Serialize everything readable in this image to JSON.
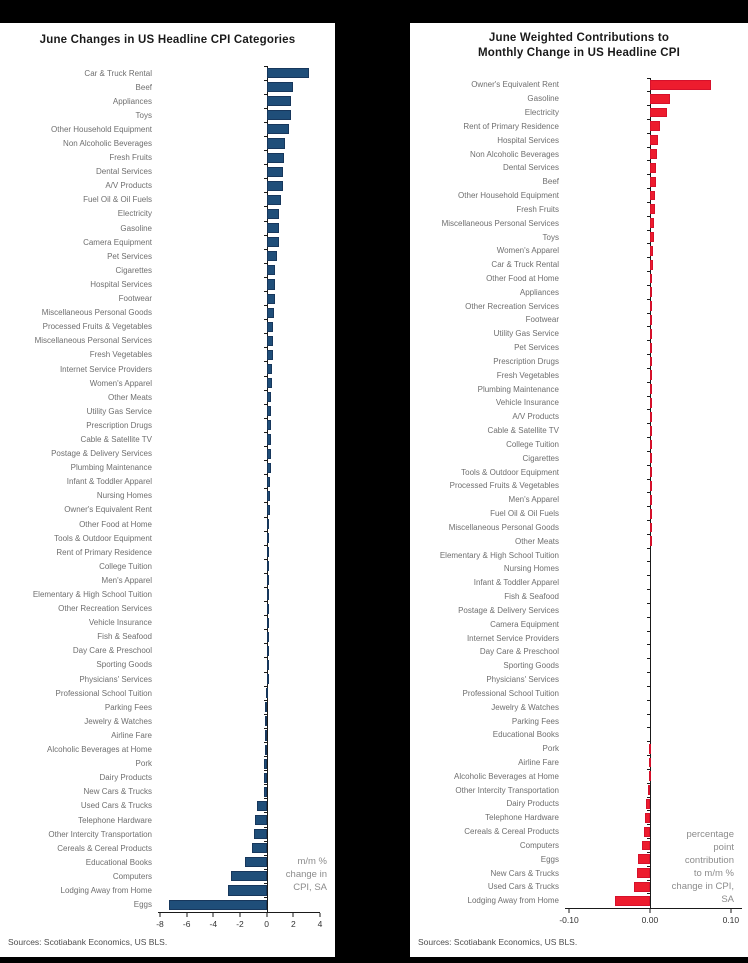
{
  "page": {
    "background_color": "#000000",
    "panel_color": "#ffffff"
  },
  "chart_data": [
    {
      "type": "bar",
      "orientation": "horizontal",
      "title": "June Changes in US Headline CPI Categories",
      "annotation": "m/m %\nchange in\nCPI, SA",
      "source": "Sources: Scotiabank Economics, US BLS.",
      "bar_color": "#1F4E79",
      "bar_border": "#17375C",
      "legend_position": "none",
      "grid": false,
      "axis": {
        "min": -8.15,
        "max": 4.0,
        "ticks": [
          -8,
          -6,
          -4,
          -2,
          0,
          2,
          4
        ],
        "tick_labels": [
          "-8",
          "-6",
          "-4",
          "-2",
          "0",
          "2",
          "4"
        ]
      },
      "categories": [
        "Car & Truck Rental",
        "Beef",
        "Appliances",
        "Toys",
        "Other Household Equipment",
        "Non Alcoholic Beverages",
        "Fresh Fruits",
        "Dental Services",
        "A/V Products",
        "Fuel Oil & Oil Fuels",
        "Electricity",
        "Gasoline",
        "Camera Equipment",
        "Pet Services",
        "Cigarettes",
        "Hospital Services",
        "Footwear",
        "Miscellaneous Personal Goods",
        "Processed Fruits & Vegetables",
        "Miscellaneous Personal Services",
        "Fresh Vegetables",
        "Internet Service Providers",
        "Women's Apparel",
        "Other Meats",
        "Utility Gas Service",
        "Prescription Drugs",
        "Cable & Satellite TV",
        "Postage & Delivery Services",
        "Plumbing Maintenance",
        "Infant & Toddler Apparel",
        "Nursing Homes",
        "Owner's Equivalent Rent",
        "Other Food at Home",
        "Tools & Outdoor Equipment",
        "Rent of Primary Residence",
        "College Tuition",
        "Men's Apparel",
        "Elementary & High School Tuition",
        "Other Recreation Services",
        "Vehicle Insurance",
        "Fish & Seafood",
        "Day Care & Preschool",
        "Sporting Goods",
        "Physicians' Services",
        "Professional School Tuition",
        "Parking Fees",
        "Jewelry & Watches",
        "Airline Fare",
        "Alcoholic Beverages at Home",
        "Pork",
        "Dairy Products",
        "New Cars & Trucks",
        "Used Cars & Trucks",
        "Telephone Hardware",
        "Other Intercity Transportation",
        "Cereals & Cereal Products",
        "Educational Books",
        "Computers",
        "Lodging Away from Home",
        "Eggs"
      ],
      "values": [
        3.2,
        2.0,
        1.85,
        1.8,
        1.7,
        1.4,
        1.3,
        1.25,
        1.2,
        1.05,
        0.95,
        0.95,
        0.9,
        0.8,
        0.65,
        0.6,
        0.6,
        0.55,
        0.5,
        0.45,
        0.45,
        0.4,
        0.4,
        0.35,
        0.35,
        0.3,
        0.3,
        0.3,
        0.3,
        0.28,
        0.25,
        0.25,
        0.2,
        0.2,
        0.2,
        0.15,
        0.15,
        0.15,
        0.12,
        0.1,
        0.1,
        0.05,
        0.05,
        0.02,
        -0.05,
        -0.1,
        -0.1,
        -0.12,
        -0.15,
        -0.2,
        -0.2,
        -0.2,
        -0.7,
        -0.9,
        -0.95,
        -1.1,
        -1.6,
        -2.7,
        -2.9,
        -7.3
      ],
      "xlabel": "m/m % change in CPI, SA",
      "ylabel": ""
    },
    {
      "type": "bar",
      "orientation": "horizontal",
      "title": "June Weighted Contributions to\nMonthly Change in US Headline CPI",
      "annotation": "percentage\npoint\ncontribution\nto m/m %\nchange in CPI,\nSA",
      "source": "Sources: Scotiabank Economics, US BLS.",
      "bar_color": "#ED1C2E",
      "bar_border": "#D6112B",
      "legend_position": "none",
      "grid": false,
      "axis": {
        "min": -0.105,
        "max": 0.11375,
        "ticks": [
          -0.1,
          0.0,
          0.1
        ],
        "tick_labels": [
          "-0.10",
          "0.00",
          "0.10"
        ]
      },
      "categories": [
        "Owner's Equivalent Rent",
        "Gasoline",
        "Electricity",
        "Rent of Primary Residence",
        "Hospital Services",
        "Non Alcoholic Beverages",
        "Dental Services",
        "Beef",
        "Other Household Equipment",
        "Fresh Fruits",
        "Miscellaneous Personal Services",
        "Toys",
        "Women's Apparel",
        "Car & Truck Rental",
        "Other Food at Home",
        "Appliances",
        "Other Recreation Services",
        "Footwear",
        "Utility Gas Service",
        "Pet Services",
        "Prescription Drugs",
        "Fresh Vegetables",
        "Plumbing Maintenance",
        "Vehicle Insurance",
        "A/V Products",
        "Cable & Satellite TV",
        "College Tuition",
        "Cigarettes",
        "Tools & Outdoor Equipment",
        "Processed Fruits & Vegetables",
        "Men's Apparel",
        "Fuel Oil & Oil Fuels",
        "Miscellaneous Personal Goods",
        "Other Meats",
        "Elementary & High School Tuition",
        "Nursing Homes",
        "Infant & Toddler Apparel",
        "Fish & Seafood",
        "Postage & Delivery Services",
        "Camera Equipment",
        "Internet Service Providers",
        "Day Care & Preschool",
        "Sporting Goods",
        "Physicians' Services",
        "Professional School Tuition",
        "Jewelry & Watches",
        "Parking Fees",
        "Educational Books",
        "Pork",
        "Airline Fare",
        "Alcoholic Beverages at Home",
        "Other Intercity Transportation",
        "Dairy Products",
        "Telephone Hardware",
        "Cereals & Cereal Products",
        "Computers",
        "Eggs",
        "New Cars & Trucks",
        "Used Cars & Trucks",
        "Lodging Away from Home"
      ],
      "values": [
        0.075,
        0.025,
        0.021,
        0.013,
        0.01,
        0.009,
        0.008,
        0.0075,
        0.006,
        0.006,
        0.005,
        0.0045,
        0.004,
        0.0035,
        0.003,
        0.003,
        0.0025,
        0.002,
        0.002,
        0.0015,
        0.0015,
        0.0012,
        0.001,
        0.001,
        0.001,
        0.001,
        0.001,
        0.001,
        0.0005,
        0.0005,
        0.0005,
        0.0005,
        0.0005,
        0.0004,
        0.0,
        0.0,
        0.0,
        0.0,
        0.0,
        0.0,
        0.0,
        0.0,
        0.0,
        0.0,
        0.0,
        0.0,
        0.0,
        0.0,
        -0.0005,
        -0.001,
        -0.0015,
        -0.003,
        -0.005,
        -0.006,
        -0.0075,
        -0.01,
        -0.015,
        -0.016,
        -0.02,
        -0.043
      ],
      "xlabel": "percentage point contribution to m/m % change in CPI, SA",
      "ylabel": ""
    }
  ]
}
